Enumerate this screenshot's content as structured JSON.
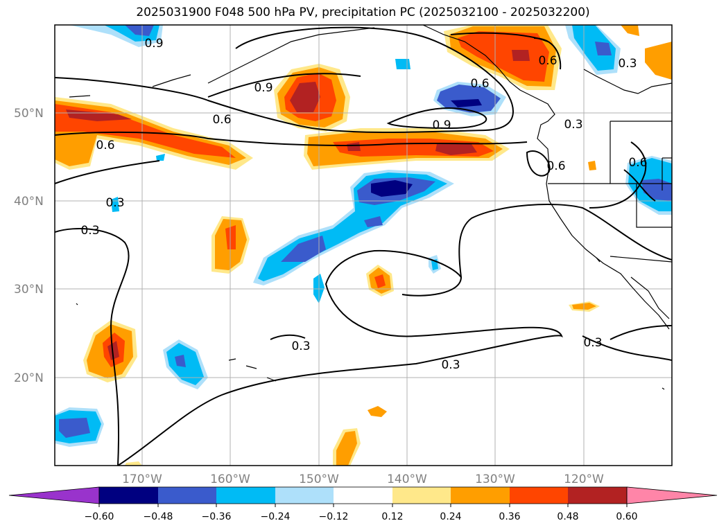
{
  "title": "2025031900 F048 500 hPa PV, precipitation PC (2025032100 - 2025032200)",
  "lat_labels": [
    "50°N",
    "40°N",
    "30°N",
    "20°N"
  ],
  "lon_labels": [
    "170°W",
    "160°W",
    "150°W",
    "140°W",
    "130°W",
    "120°W"
  ],
  "colorbar": {
    "ticks": [
      "−0.60",
      "−0.48",
      "−0.36",
      "−0.24",
      "−0.12",
      "0.12",
      "0.24",
      "0.36",
      "0.48",
      "0.60"
    ],
    "colors": [
      "#9933cc",
      "#000080",
      "#3a5bcc",
      "#00bbf5",
      "#aee0fa",
      "#ffffff",
      "#ffe88a",
      "#ff9e00",
      "#ff4500",
      "#b22222",
      "#ff85a8"
    ]
  },
  "contour_labels": [
    "0.9",
    "0.9",
    "0.9",
    "0.6",
    "0.6",
    "0.6",
    "0.6",
    "0.6",
    "0.3",
    "0.3",
    "0.3",
    "0.3",
    "0.3",
    "0.3",
    "0.3",
    "0.6"
  ]
}
